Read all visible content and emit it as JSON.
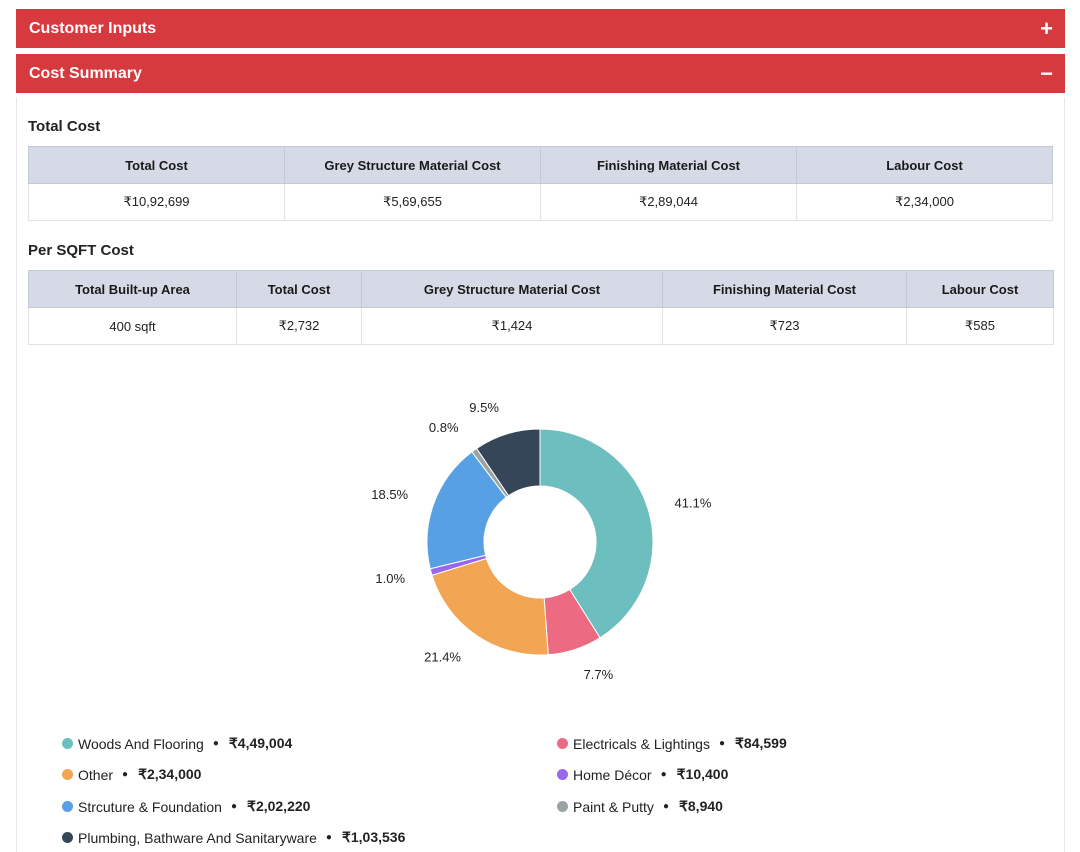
{
  "accordion": {
    "customer_inputs": {
      "title": "Customer Inputs",
      "toggle": "+"
    },
    "cost_summary": {
      "title": "Cost Summary",
      "toggle": "−"
    }
  },
  "total_cost": {
    "title": "Total Cost",
    "headers": [
      "Total Cost",
      "Grey Structure Material Cost",
      "Finishing Material Cost",
      "Labour Cost"
    ],
    "values": [
      "₹10,92,699",
      "₹5,69,655",
      "₹2,89,044",
      "₹2,34,000"
    ]
  },
  "per_sqft": {
    "title": "Per SQFT Cost",
    "headers": [
      "Total Built-up Area",
      "Total Cost",
      "Grey Structure Material Cost",
      "Finishing Material Cost",
      "Labour Cost"
    ],
    "values": [
      "400 sqft",
      "₹2,732",
      "₹1,424",
      "₹723",
      "₹585"
    ]
  },
  "chart_data": {
    "type": "pie",
    "donut": true,
    "slices": [
      {
        "label": "Woods And Flooring",
        "value": 449004,
        "pct": "41.1%",
        "color": "#6dbfbf"
      },
      {
        "label": "Electricals & Lightings",
        "value": 84599,
        "pct": "7.7%",
        "color": "#ec6b83"
      },
      {
        "label": "Other",
        "value": 234000,
        "pct": "21.4%",
        "color": "#f2a553"
      },
      {
        "label": "Home Décor",
        "value": 10400,
        "pct": "1.0%",
        "color": "#9966ee"
      },
      {
        "label": "Strcuture & Foundation",
        "value": 202220,
        "pct": "18.5%",
        "color": "#58a0e4"
      },
      {
        "label": "Paint & Putty",
        "value": 8940,
        "pct": "0.8%",
        "color": "#9aa2a4"
      },
      {
        "label": "Plumbing, Bathware And Sanitaryware",
        "value": 103536,
        "pct": "9.5%",
        "color": "#344658"
      }
    ]
  },
  "legend": [
    {
      "label": "Woods And Flooring",
      "value": "₹4,49,004",
      "color": "#6dbfbf"
    },
    {
      "label": "Electricals & Lightings",
      "value": "₹84,599",
      "color": "#ec6b83"
    },
    {
      "label": "Other",
      "value": "₹2,34,000",
      "color": "#f2a553"
    },
    {
      "label": "Home Décor",
      "value": "₹10,400",
      "color": "#9966ee"
    },
    {
      "label": "Strcuture & Foundation",
      "value": "₹2,02,220",
      "color": "#58a0e4"
    },
    {
      "label": "Paint & Putty",
      "value": "₹8,940",
      "color": "#9aa2a4"
    },
    {
      "label": "Plumbing, Bathware And Sanitaryware",
      "value": "₹1,03,536",
      "color": "#344658"
    }
  ],
  "legend_separator": "●"
}
